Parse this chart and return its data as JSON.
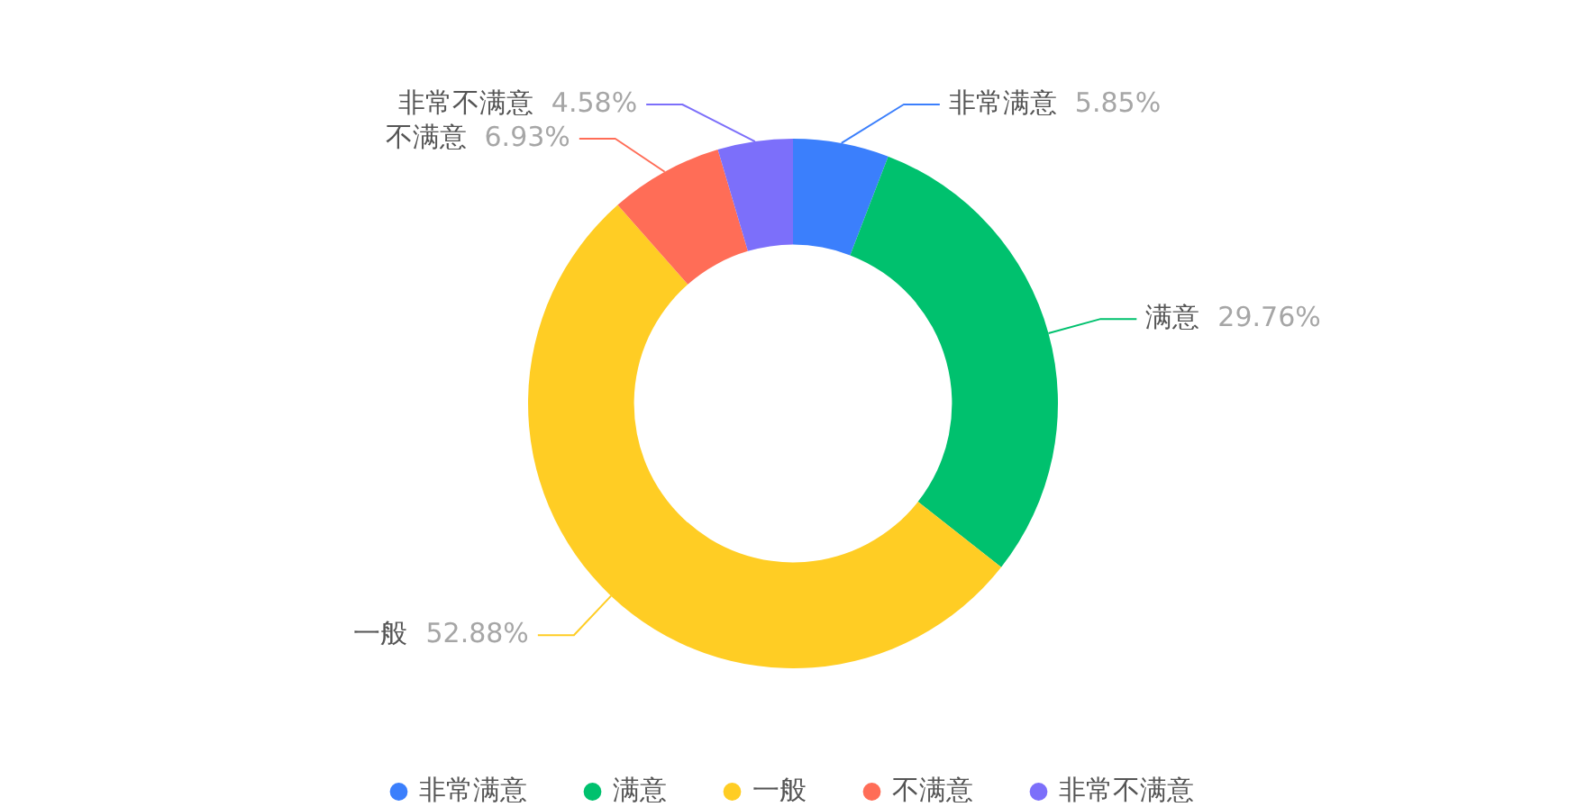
{
  "chart_data": {
    "type": "donut",
    "categories": [
      "非常满意",
      "满意",
      "一般",
      "不满意",
      "非常不满意"
    ],
    "values": [
      5.85,
      29.76,
      52.88,
      6.93,
      4.58
    ],
    "colors": [
      "#3b7ffc",
      "#00c16e",
      "#ffcd24",
      "#ff6d57",
      "#7c6ffa"
    ],
    "value_labels": [
      "5.85%",
      "29.76%",
      "52.88%",
      "6.93%",
      "4.58%"
    ],
    "legend": "bottom"
  }
}
